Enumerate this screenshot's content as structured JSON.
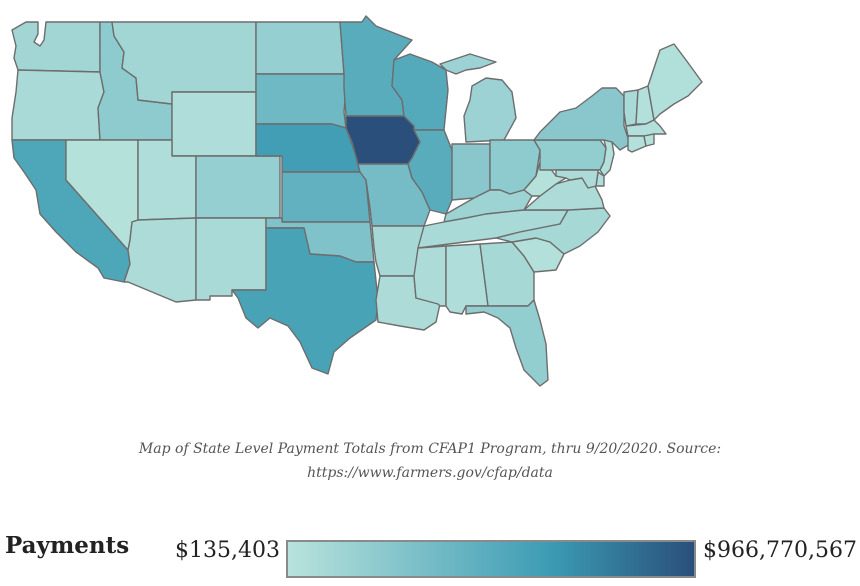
{
  "map": {
    "colors": {
      "scale_low": "#b9e3dc",
      "scale_mid": "#3b9bb3",
      "scale_high": "#2a4f7a",
      "border": "#6d6d6d"
    },
    "states": [
      {
        "id": "WA",
        "level": 0.12
      },
      {
        "id": "OR",
        "level": 0.08
      },
      {
        "id": "CA",
        "level": 0.55
      },
      {
        "id": "ID",
        "level": 0.22
      },
      {
        "id": "NV",
        "level": 0.02
      },
      {
        "id": "MT",
        "level": 0.12
      },
      {
        "id": "WY",
        "level": 0.05
      },
      {
        "id": "UT",
        "level": 0.05
      },
      {
        "id": "AZ",
        "level": 0.06
      },
      {
        "id": "CO",
        "level": 0.18
      },
      {
        "id": "NM",
        "level": 0.08
      },
      {
        "id": "ND",
        "level": 0.18
      },
      {
        "id": "SD",
        "level": 0.38
      },
      {
        "id": "NE",
        "level": 0.62
      },
      {
        "id": "KS",
        "level": 0.45
      },
      {
        "id": "OK",
        "level": 0.3
      },
      {
        "id": "TX",
        "level": 0.58
      },
      {
        "id": "MN",
        "level": 0.5
      },
      {
        "id": "IA",
        "level": 1.0
      },
      {
        "id": "MO",
        "level": 0.35
      },
      {
        "id": "AR",
        "level": 0.1
      },
      {
        "id": "LA",
        "level": 0.06
      },
      {
        "id": "WI",
        "level": 0.52
      },
      {
        "id": "IL",
        "level": 0.5
      },
      {
        "id": "MI",
        "level": 0.15
      },
      {
        "id": "IN",
        "level": 0.25
      },
      {
        "id": "OH",
        "level": 0.22
      },
      {
        "id": "KY",
        "level": 0.14
      },
      {
        "id": "TN",
        "level": 0.08
      },
      {
        "id": "MS",
        "level": 0.06
      },
      {
        "id": "AL",
        "level": 0.05
      },
      {
        "id": "GA",
        "level": 0.1
      },
      {
        "id": "FL",
        "level": 0.2
      },
      {
        "id": "SC",
        "level": 0.03
      },
      {
        "id": "NC",
        "level": 0.1
      },
      {
        "id": "VA",
        "level": 0.06
      },
      {
        "id": "WV",
        "level": 0.02
      },
      {
        "id": "PA",
        "level": 0.2
      },
      {
        "id": "NY",
        "level": 0.25
      },
      {
        "id": "VT",
        "level": 0.08
      },
      {
        "id": "NH",
        "level": 0.03
      },
      {
        "id": "ME",
        "level": 0.04
      },
      {
        "id": "MA",
        "level": 0.03
      },
      {
        "id": "CT",
        "level": 0.03
      },
      {
        "id": "RI",
        "level": 0.02
      },
      {
        "id": "NJ",
        "level": 0.03
      },
      {
        "id": "DE",
        "level": 0.05
      },
      {
        "id": "MD",
        "level": 0.06
      }
    ]
  },
  "caption": {
    "line1": "Map of State Level Payment Totals from CFAP1 Program, thru 9/20/2020. Source:",
    "line2": "https://www.farmers.gov/cfap/data"
  },
  "legend": {
    "title": "Payments",
    "min": "$135,403",
    "max": "$966,770,567"
  }
}
